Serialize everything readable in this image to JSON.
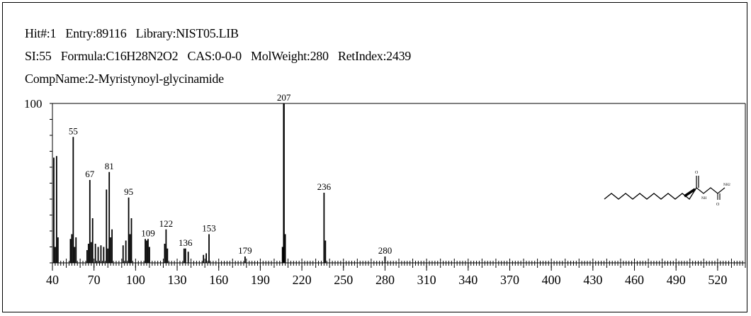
{
  "header": {
    "hit": "Hit#:1",
    "entry": "Entry:89116",
    "library": "Library:NIST05.LIB",
    "si": "SI:55",
    "formula": "Formula:C16H28N2O2",
    "cas": "CAS:0-0-0",
    "molweight": "MolWeight:280",
    "retindex": "RetIndex:2439",
    "compname": "CompName:2-Myristynoyl-glycinamide"
  },
  "chart_data": {
    "type": "bar",
    "xlim": [
      40,
      540
    ],
    "ylim": [
      0,
      100
    ],
    "y_tick_label": "100",
    "x_ticks": [
      40,
      70,
      100,
      130,
      160,
      190,
      220,
      250,
      280,
      310,
      340,
      370,
      400,
      430,
      460,
      490,
      520
    ],
    "peaks": [
      {
        "x": 41,
        "y": 66
      },
      {
        "x": 42,
        "y": 10
      },
      {
        "x": 43,
        "y": 67
      },
      {
        "x": 44,
        "y": 16
      },
      {
        "x": 53,
        "y": 15
      },
      {
        "x": 54,
        "y": 18
      },
      {
        "x": 55,
        "y": 79,
        "label": "55"
      },
      {
        "x": 56,
        "y": 10
      },
      {
        "x": 57,
        "y": 16
      },
      {
        "x": 65,
        "y": 8
      },
      {
        "x": 66,
        "y": 12
      },
      {
        "x": 67,
        "y": 52,
        "label": "67"
      },
      {
        "x": 68,
        "y": 13
      },
      {
        "x": 69,
        "y": 28
      },
      {
        "x": 71,
        "y": 12
      },
      {
        "x": 73,
        "y": 10
      },
      {
        "x": 75,
        "y": 11
      },
      {
        "x": 77,
        "y": 10
      },
      {
        "x": 79,
        "y": 46
      },
      {
        "x": 80,
        "y": 9
      },
      {
        "x": 81,
        "y": 57,
        "label": "81"
      },
      {
        "x": 82,
        "y": 16
      },
      {
        "x": 83,
        "y": 21
      },
      {
        "x": 91,
        "y": 11
      },
      {
        "x": 93,
        "y": 14
      },
      {
        "x": 95,
        "y": 41,
        "label": "95"
      },
      {
        "x": 96,
        "y": 18
      },
      {
        "x": 97,
        "y": 28
      },
      {
        "x": 107,
        "y": 15
      },
      {
        "x": 108,
        "y": 14
      },
      {
        "x": 109,
        "y": 15,
        "label": "109"
      },
      {
        "x": 110,
        "y": 10
      },
      {
        "x": 121,
        "y": 12
      },
      {
        "x": 122,
        "y": 21,
        "label": "122"
      },
      {
        "x": 123,
        "y": 9
      },
      {
        "x": 135,
        "y": 9
      },
      {
        "x": 136,
        "y": 9,
        "label": "136"
      },
      {
        "x": 138,
        "y": 7
      },
      {
        "x": 149,
        "y": 5
      },
      {
        "x": 151,
        "y": 6
      },
      {
        "x": 153,
        "y": 18,
        "label": "153"
      },
      {
        "x": 179,
        "y": 4,
        "label": "179"
      },
      {
        "x": 206,
        "y": 10
      },
      {
        "x": 207,
        "y": 100,
        "label": "207"
      },
      {
        "x": 208,
        "y": 18
      },
      {
        "x": 236,
        "y": 44,
        "label": "236"
      },
      {
        "x": 237,
        "y": 14
      },
      {
        "x": 280,
        "y": 4,
        "label": "280"
      }
    ],
    "structure_labels": {
      "carbonyl_o": "O",
      "nh": "NH",
      "nh2": "NH2",
      "amide_o": "O"
    },
    "grid": false
  }
}
